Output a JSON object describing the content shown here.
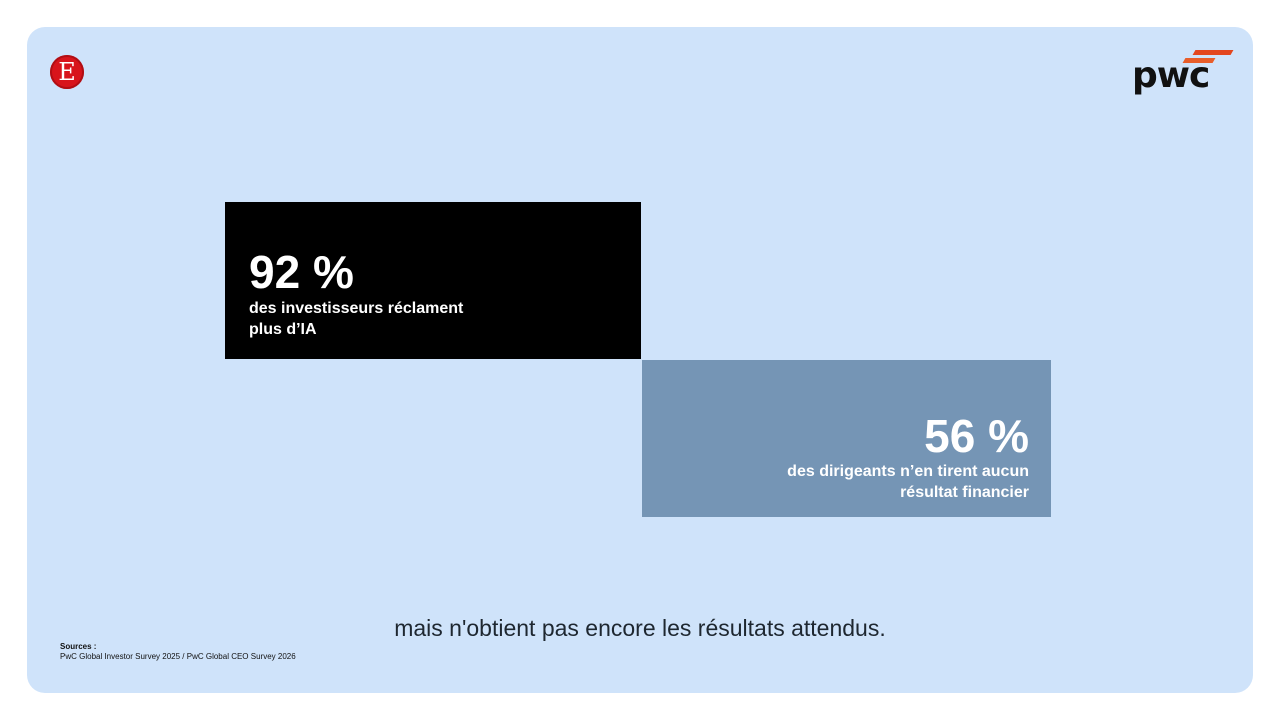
{
  "logos": {
    "left_letter": "E",
    "right_wordmark": "pwc"
  },
  "stats": {
    "first": {
      "value": "92 %",
      "line1": "des investisseurs réclament",
      "line2": "plus d’IA"
    },
    "second": {
      "value": "56 %",
      "line1": "des dirigeants n’en tirent aucun",
      "line2": "résultat financier"
    }
  },
  "caption": "mais n'obtient pas encore les résultats attendus.",
  "sources": {
    "title": "Sources :",
    "text": "PwC Global Investor Survey 2025 / PwC Global CEO Survey 2026"
  },
  "colors": {
    "background": "#cfe3fa",
    "dark_box": "#000000",
    "blue_box": "#7595b5",
    "brand_red": "#d8141b",
    "pwc_orange": "#e3461e"
  }
}
